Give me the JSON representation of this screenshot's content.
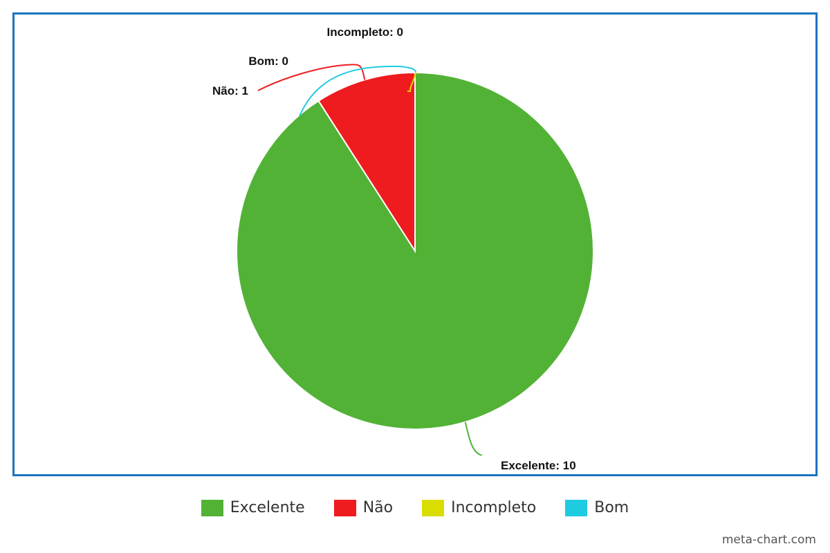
{
  "chart_data": {
    "type": "pie",
    "slices": [
      {
        "name": "Excelente",
        "value": 10,
        "color": "#52b236",
        "label": "Excelente: 10"
      },
      {
        "name": "Não",
        "value": 1,
        "color": "#ee1c1f",
        "label": "Não: 1"
      },
      {
        "name": "Incompleto",
        "value": 0,
        "color": "#d9dd00",
        "label": "Incompleto: 0"
      },
      {
        "name": "Bom",
        "value": 0,
        "color": "#1ecbe1",
        "label": "Bom: 0"
      }
    ],
    "legend": {
      "placement": "bottom",
      "items": [
        {
          "label": "Excelente",
          "color": "#52b236"
        },
        {
          "label": "Não",
          "color": "#ee1c1f"
        },
        {
          "label": "Incompleto",
          "color": "#d9dd00"
        },
        {
          "label": "Bom",
          "color": "#1ecbe1"
        }
      ]
    },
    "frame_color": "#1a73bf"
  },
  "watermark": "meta-chart.com"
}
